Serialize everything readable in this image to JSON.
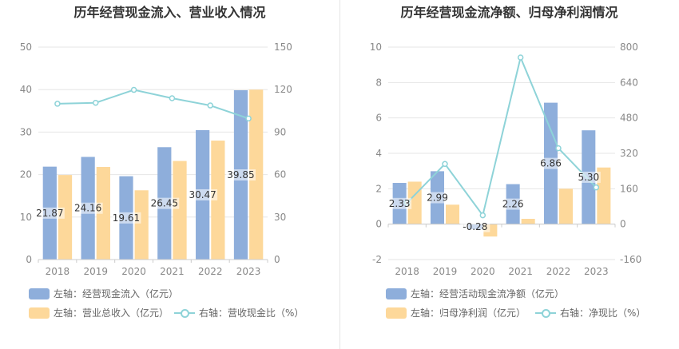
{
  "colors": {
    "bar_primary": "#8eaedb",
    "bar_secondary": "#fdd89a",
    "line": "#8ed3d8",
    "grid": "#e6e6e6",
    "text": "#333333",
    "tick": "#888888"
  },
  "chart_data": [
    {
      "type": "bar",
      "title": "历年经营现金流入、营业收入情况",
      "categories": [
        "2018",
        "2019",
        "2020",
        "2021",
        "2022",
        "2023"
      ],
      "left_axis": {
        "ticks": [
          "0",
          "10",
          "20",
          "30",
          "40",
          "50"
        ],
        "ylim": [
          0,
          50
        ]
      },
      "right_axis": {
        "ticks": [
          "0",
          "30",
          "60",
          "90",
          "120",
          "150"
        ],
        "ylim": [
          0,
          150
        ]
      },
      "series": [
        {
          "name": "左轴：经营现金流入（亿元）",
          "kind": "bar",
          "axis": "left",
          "values": [
            21.87,
            24.16,
            19.61,
            26.45,
            30.47,
            39.85
          ],
          "labels": [
            "21.87",
            "24.16",
            "19.61",
            "26.45",
            "30.47",
            "39.85"
          ]
        },
        {
          "name": "左轴：营业总收入（亿元）",
          "kind": "bar",
          "axis": "left",
          "values": [
            19.9,
            21.8,
            16.3,
            23.2,
            28.0,
            40.0
          ]
        },
        {
          "name": "右轴：营收现金比（%）",
          "kind": "line",
          "axis": "right",
          "values": [
            110,
            110.7,
            119.8,
            113.9,
            108.8,
            99.6
          ]
        }
      ],
      "legend": [
        {
          "label": "左轴：经营现金流入（亿元）",
          "swatch": "bar_primary"
        },
        {
          "label": "左轴：营业总收入（亿元）",
          "swatch": "bar_secondary"
        },
        {
          "label": "右轴：营收现金比（%）",
          "swatch": "line"
        }
      ]
    },
    {
      "type": "bar",
      "title": "历年经营现金流净额、归母净利润情况",
      "categories": [
        "2018",
        "2019",
        "2020",
        "2021",
        "2022",
        "2023"
      ],
      "left_axis": {
        "ticks": [
          "-2",
          "0",
          "2",
          "4",
          "6",
          "8",
          "10"
        ],
        "ylim": [
          -2,
          10
        ]
      },
      "right_axis": {
        "ticks": [
          "-160",
          "0",
          "160",
          "320",
          "480",
          "640",
          "800"
        ],
        "ylim": [
          -160,
          800
        ]
      },
      "series": [
        {
          "name": "左轴：经营活动现金流净额（亿元）",
          "kind": "bar",
          "axis": "left",
          "values": [
            2.33,
            2.99,
            -0.28,
            2.26,
            6.86,
            5.3
          ],
          "labels": [
            "2.33",
            "2.99",
            "-0.28",
            "2.26",
            "6.86",
            "5.30"
          ]
        },
        {
          "name": "左轴：归母净利润（亿元）",
          "kind": "bar",
          "axis": "left",
          "values": [
            2.4,
            1.1,
            -0.7,
            0.3,
            2.0,
            3.2
          ]
        },
        {
          "name": "右轴：净现比（%）",
          "kind": "line",
          "axis": "right",
          "values": [
            97,
            272,
            40,
            753,
            343,
            166
          ]
        }
      ],
      "legend": [
        {
          "label": "左轴：经营活动现金流净额（亿元）",
          "swatch": "bar_primary"
        },
        {
          "label": "左轴：归母净利润（亿元）",
          "swatch": "bar_secondary"
        },
        {
          "label": "右轴：净现比（%）",
          "swatch": "line"
        }
      ]
    }
  ]
}
